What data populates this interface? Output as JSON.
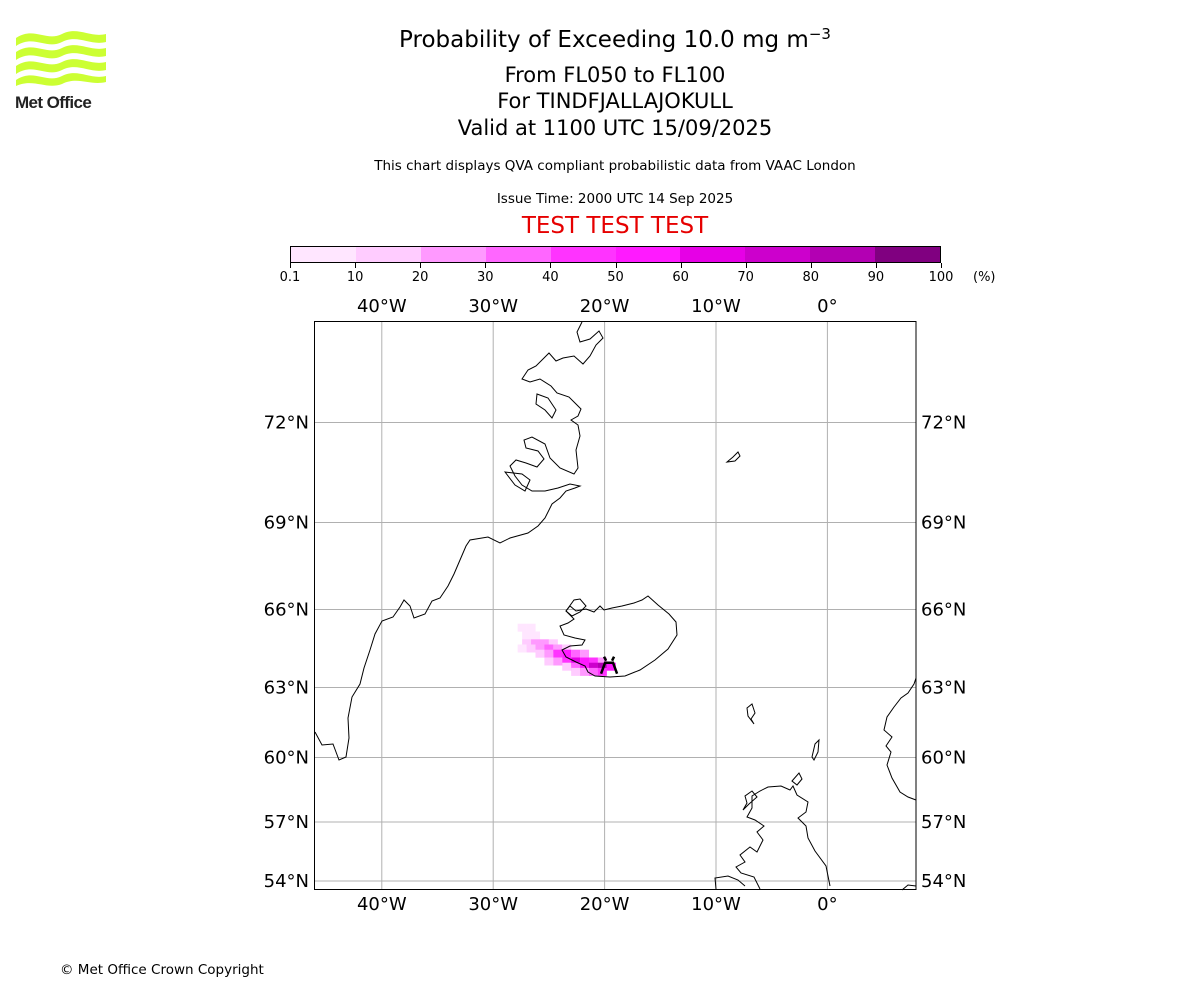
{
  "header": {
    "logo_text": "Met Office",
    "title_prefix": "Probability of Exceeding 10.0 mg m",
    "title_exponent": "−3",
    "title_line2": "From FL050 to FL100",
    "title_line3": "For TINDFJALLAJOKULL",
    "title_line4": "Valid at 1100 UTC 15/09/2025",
    "subtitle": "This chart displays QVA compliant probabilistic data from VAAC London",
    "issue_time": "Issue Time: 2000 UTC 14 Sep 2025",
    "test_banner": "TEST TEST TEST"
  },
  "colors": {
    "logo_green": "#ccff33",
    "test_red": "#e60000",
    "colorbar": [
      "#ffe6ff",
      "#ffccff",
      "#ff99ff",
      "#ff66ff",
      "#ff33ff",
      "#ff1aff",
      "#e600e6",
      "#cc00cc",
      "#b300b3",
      "#800080"
    ]
  },
  "colorbar": {
    "ticks": [
      "0.1",
      "10",
      "20",
      "30",
      "40",
      "50",
      "60",
      "70",
      "80",
      "90",
      "100"
    ],
    "unit": "(%)"
  },
  "map": {
    "lon_labels": [
      "40°W",
      "30°W",
      "20°W",
      "10°W",
      "0°"
    ],
    "lat_labels": [
      "72°N",
      "69°N",
      "66°N",
      "63°N",
      "60°N",
      "57°N",
      "54°N"
    ],
    "volcano_icon": "volcano-icon"
  },
  "chart_data": {
    "type": "heatmap",
    "title": "Probability of Exceeding 10.0 mg m−3",
    "extent": {
      "lon_min": -46,
      "lon_max": 8,
      "lat_min": 53.5,
      "lat_max": 75
    },
    "grid": true,
    "volcano": {
      "name": "TINDFJALLAJOKULL",
      "lon": -19.6,
      "lat": 63.8
    },
    "units": "%",
    "cells": [
      {
        "lon": -27.4,
        "lat": 65.3,
        "p": 5
      },
      {
        "lon": -26.6,
        "lat": 65.3,
        "p": 5
      },
      {
        "lon": -27.0,
        "lat": 65.0,
        "p": 5
      },
      {
        "lon": -26.2,
        "lat": 65.0,
        "p": 8
      },
      {
        "lon": -27.0,
        "lat": 64.7,
        "p": 15
      },
      {
        "lon": -26.2,
        "lat": 64.7,
        "p": 20
      },
      {
        "lon": -25.4,
        "lat": 64.7,
        "p": 25
      },
      {
        "lon": -24.6,
        "lat": 64.7,
        "p": 15
      },
      {
        "lon": -27.4,
        "lat": 64.5,
        "p": 5
      },
      {
        "lon": -26.6,
        "lat": 64.5,
        "p": 15
      },
      {
        "lon": -25.8,
        "lat": 64.5,
        "p": 25
      },
      {
        "lon": -25.0,
        "lat": 64.5,
        "p": 35
      },
      {
        "lon": -24.2,
        "lat": 64.5,
        "p": 25
      },
      {
        "lon": -23.4,
        "lat": 64.5,
        "p": 15
      },
      {
        "lon": -25.8,
        "lat": 64.3,
        "p": 15
      },
      {
        "lon": -25.0,
        "lat": 64.3,
        "p": 25
      },
      {
        "lon": -24.2,
        "lat": 64.3,
        "p": 45
      },
      {
        "lon": -23.4,
        "lat": 64.3,
        "p": 55
      },
      {
        "lon": -22.6,
        "lat": 64.3,
        "p": 35
      },
      {
        "lon": -21.8,
        "lat": 64.3,
        "p": 25
      },
      {
        "lon": -25.0,
        "lat": 64.0,
        "p": 15
      },
      {
        "lon": -24.2,
        "lat": 64.0,
        "p": 25
      },
      {
        "lon": -23.4,
        "lat": 64.0,
        "p": 45
      },
      {
        "lon": -22.6,
        "lat": 64.0,
        "p": 65
      },
      {
        "lon": -21.8,
        "lat": 64.0,
        "p": 55
      },
      {
        "lon": -21.0,
        "lat": 64.0,
        "p": 45
      },
      {
        "lon": -20.2,
        "lat": 64.0,
        "p": 25
      },
      {
        "lon": -23.4,
        "lat": 63.8,
        "p": 15
      },
      {
        "lon": -22.6,
        "lat": 63.8,
        "p": 35
      },
      {
        "lon": -21.8,
        "lat": 63.8,
        "p": 55
      },
      {
        "lon": -21.0,
        "lat": 63.8,
        "p": 75
      },
      {
        "lon": -20.2,
        "lat": 63.8,
        "p": 85
      },
      {
        "lon": -19.4,
        "lat": 63.8,
        "p": 55
      },
      {
        "lon": -22.6,
        "lat": 63.6,
        "p": 15
      },
      {
        "lon": -21.8,
        "lat": 63.6,
        "p": 25
      },
      {
        "lon": -21.0,
        "lat": 63.6,
        "p": 35
      },
      {
        "lon": -20.2,
        "lat": 63.6,
        "p": 45
      }
    ]
  }
}
